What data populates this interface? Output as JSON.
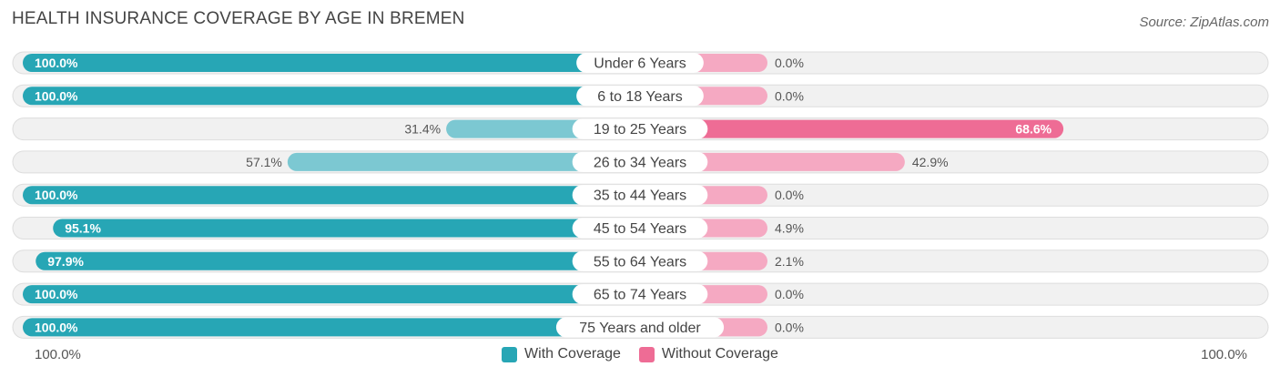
{
  "header": {
    "title": "HEALTH INSURANCE COVERAGE BY AGE IN BREMEN",
    "source": "Source: ZipAtlas.com"
  },
  "axis": {
    "left_label": "100.0%",
    "right_label": "100.0%"
  },
  "legend": {
    "with_label": "With Coverage",
    "without_label": "Without Coverage"
  },
  "colors": {
    "with_strong": "#27a6b5",
    "with_light": "#7cc8d2",
    "without_strong": "#ee6c95",
    "without_light": "#f5a9c2",
    "row_bg": "#f1f1f1",
    "row_border": "#dddddd"
  },
  "chart_data": {
    "type": "bar",
    "orientation": "horizontal-diverging",
    "title": "HEALTH INSURANCE COVERAGE BY AGE IN BREMEN",
    "xlim": [
      0,
      100
    ],
    "categories": [
      "Under 6 Years",
      "6 to 18 Years",
      "19 to 25 Years",
      "26 to 34 Years",
      "35 to 44 Years",
      "45 to 54 Years",
      "55 to 64 Years",
      "65 to 74 Years",
      "75 Years and older"
    ],
    "series": [
      {
        "name": "With Coverage",
        "values": [
          100.0,
          100.0,
          31.4,
          57.1,
          100.0,
          95.1,
          97.9,
          100.0,
          100.0
        ],
        "labels": [
          "100.0%",
          "100.0%",
          "31.4%",
          "57.1%",
          "100.0%",
          "95.1%",
          "97.9%",
          "100.0%",
          "100.0%"
        ]
      },
      {
        "name": "Without Coverage",
        "values": [
          0.0,
          0.0,
          68.6,
          42.9,
          0.0,
          4.9,
          2.1,
          0.0,
          0.0
        ],
        "labels": [
          "0.0%",
          "0.0%",
          "68.6%",
          "42.9%",
          "0.0%",
          "4.9%",
          "2.1%",
          "0.0%",
          "0.0%"
        ]
      }
    ]
  }
}
